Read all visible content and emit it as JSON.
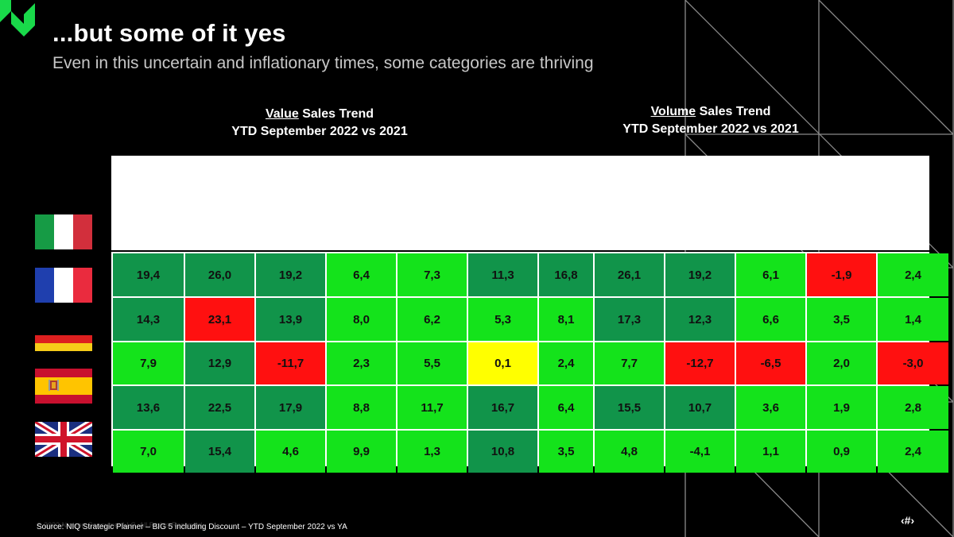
{
  "slide": {
    "title": "...but some of it yes",
    "subtitle": "Even in this uncertain and inflationary times, some categories are thriving"
  },
  "value_header": {
    "key": "Value",
    "rest": " Sales Trend",
    "line2": "YTD September 2022 vs 2021"
  },
  "volume_header": {
    "key": "Volume",
    "rest": " Sales Trend",
    "line2": "YTD September 2022 vs 2021"
  },
  "countries": [
    {
      "flag": "italy-flag"
    },
    {
      "flag": "france-flag"
    },
    {
      "flag": "germany-flag"
    },
    {
      "flag": "spain-flag"
    },
    {
      "flag": "uk-flag"
    }
  ],
  "colors": {
    "dark_green": "#11944a",
    "bright_green": "#14e31b",
    "red": "#ff1010",
    "yellow": "#ffff00",
    "brand_green": "#19d94a"
  },
  "table": {
    "rows": [
      [
        "19,4",
        "26,0",
        "19,2",
        "6,4",
        "7,3",
        "11,3",
        "16,8",
        "26,1",
        "19,2",
        "6,1",
        "-1,9",
        "2,4"
      ],
      [
        "14,3",
        "23,1",
        "13,9",
        "8,0",
        "6,2",
        "5,3",
        "8,1",
        "17,3",
        "12,3",
        "6,6",
        "3,5",
        "1,4"
      ],
      [
        "7,9",
        "12,9",
        "-11,7",
        "2,3",
        "5,5",
        "0,1",
        "2,4",
        "7,7",
        "-12,7",
        "-6,5",
        "2,0",
        "-3,0"
      ],
      [
        "13,6",
        "22,5",
        "17,9",
        "8,8",
        "11,7",
        "16,7",
        "6,4",
        "15,5",
        "10,7",
        "3,6",
        "1,9",
        "2,8"
      ],
      [
        "7,0",
        "15,4",
        "4,6",
        "9,9",
        "1,3",
        "10,8",
        "3,5",
        "4,8",
        "-4,1",
        "1,1",
        "0,9",
        "2,4"
      ]
    ],
    "cell_colors": [
      [
        "dark_green",
        "dark_green",
        "dark_green",
        "bright_green",
        "bright_green",
        "dark_green",
        "dark_green",
        "dark_green",
        "dark_green",
        "bright_green",
        "red",
        "bright_green"
      ],
      [
        "dark_green",
        "red",
        "dark_green",
        "bright_green",
        "bright_green",
        "bright_green",
        "bright_green",
        "dark_green",
        "dark_green",
        "bright_green",
        "bright_green",
        "bright_green"
      ],
      [
        "bright_green",
        "dark_green",
        "red",
        "bright_green",
        "bright_green",
        "yellow",
        "bright_green",
        "bright_green",
        "red",
        "red",
        "bright_green",
        "red"
      ],
      [
        "dark_green",
        "dark_green",
        "dark_green",
        "bright_green",
        "bright_green",
        "dark_green",
        "bright_green",
        "dark_green",
        "dark_green",
        "bright_green",
        "bright_green",
        "bright_green"
      ],
      [
        "bright_green",
        "dark_green",
        "bright_green",
        "bright_green",
        "bright_green",
        "dark_green",
        "bright_green",
        "bright_green",
        "bright_green",
        "bright_green",
        "bright_green",
        "bright_green"
      ]
    ]
  },
  "footer": {
    "source": "Source: NIQ Strategic Planner – BIG 5 including Discount – YTD September 2022 vs YA",
    "copyright": "© 2022 Nielsen Consumer LLC. All Rights Reserved.",
    "corner_logo": "‹#›"
  }
}
